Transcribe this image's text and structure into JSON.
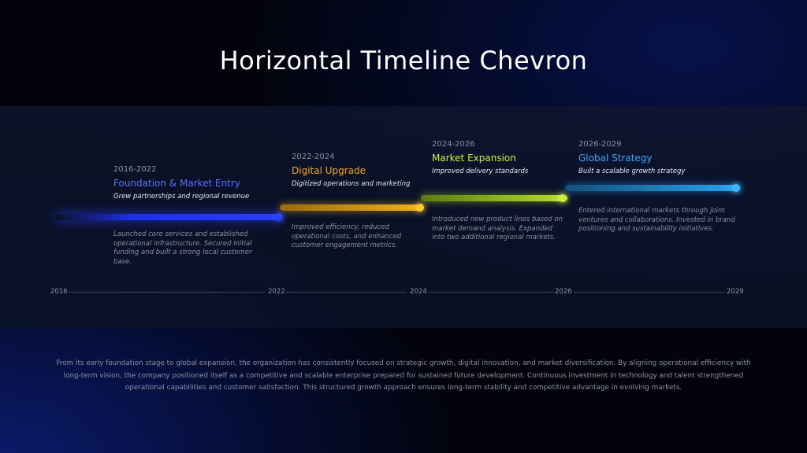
{
  "title": "Horizontal Timeline Chevron",
  "colors": {
    "blue": "#2437ff",
    "gold": "#f0b21e",
    "lime": "#b8e22c",
    "sky": "#2aa3f0",
    "blue_text": "#5a70ff",
    "gold_text": "#f5a623",
    "lime_text": "#c9f03a",
    "sky_text": "#3aa6f0"
  },
  "milestones": [
    {
      "years": "2016-2022",
      "title": "Foundation & Market Entry",
      "subtitle": "Grew partnerships and regional revenue",
      "description": "Launched core services and established operational infrastructure. Secured initial funding and built a strong local customer base."
    },
    {
      "years": "2022-2024",
      "title": "Digital Upgrade",
      "subtitle": "Digitized operations and marketing",
      "description": "Improved efficiency, reduced operational costs, and enhanced customer engagement metrics."
    },
    {
      "years": "2024-2026",
      "title": "Market Expansion",
      "subtitle": "Improved delivery standards",
      "description": "Introduced new product lines based on market demand analysis. Expanded into two additional regional markets."
    },
    {
      "years": "2026-2029",
      "title": "Global Strategy",
      "subtitle": "Built a scalable growth strategy",
      "description": "Entered international markets through joint ventures and collaborations. Invested in brand positioning and sustainability initiatives."
    }
  ],
  "axis": [
    "2016",
    "2022",
    "2024",
    "2026",
    "2029"
  ],
  "footer": "From its early foundation stage to global expansion, the organization has consistently focused on strategic growth, digital innovation, and market diversification. By aligning operational efficiency with long-term vision, the company positioned itself as a competitive and scalable enterprise prepared for sustained future development. Continuous investment in technology and talent strengthened operational capabilities and customer satisfaction. This structured growth approach ensures long-term stability and competitive advantage in evolving markets."
}
